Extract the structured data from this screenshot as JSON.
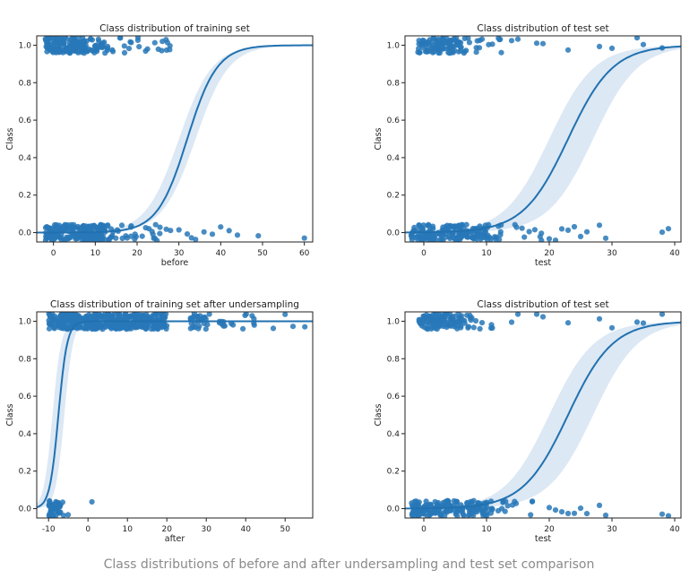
{
  "caption": "Class distributions of before and after undersampling and test set comparison",
  "style": {
    "point_color": "#2878b8",
    "line_color": "#2171b0",
    "band_color": "#dce8f4",
    "axis_color": "#222222"
  },
  "chart_data": [
    {
      "type": "scatter",
      "subtype": "logistic-regression-with-jitter",
      "title": "Class distribution of training set",
      "xlabel": "before",
      "ylabel": "Class",
      "xlim": [
        -4,
        62
      ],
      "ylim": [
        -0.05,
        1.05
      ],
      "xticks": [
        0,
        10,
        20,
        30,
        40,
        50,
        60
      ],
      "yticks": [
        0.0,
        0.2,
        0.4,
        0.6,
        0.8,
        1.0
      ],
      "logistic_fit": {
        "midpoint": 32,
        "slope": 0.28,
        "band_lo_mid": 30,
        "band_hi_mid": 34,
        "band_scale": 0.9
      },
      "class_0_points": {
        "dense_x_range": [
          -2,
          12
        ],
        "sparse_x_range": [
          12,
          27
        ],
        "outliers_x": [
          28,
          30,
          32,
          33,
          34,
          36,
          38,
          40,
          42,
          44,
          49,
          60
        ]
      },
      "class_1_points": {
        "dense_x_range": [
          -2,
          8
        ],
        "sparse_x_range": [
          8,
          28
        ],
        "outliers_x": []
      }
    },
    {
      "type": "scatter",
      "subtype": "logistic-regression-with-jitter",
      "title": "Class distribution of test set",
      "xlabel": "test",
      "ylabel": "Class",
      "xlim": [
        -3,
        41
      ],
      "ylim": [
        -0.05,
        1.05
      ],
      "xticks": [
        0,
        10,
        20,
        30,
        40
      ],
      "yticks": [
        0.0,
        0.2,
        0.4,
        0.6,
        0.8,
        1.0
      ],
      "logistic_fit": {
        "midpoint": 23,
        "slope": 0.28,
        "band_lo_mid": 20,
        "band_hi_mid": 27,
        "band_scale": 1.0
      },
      "class_0_points": {
        "dense_x_range": [
          -2,
          10
        ],
        "sparse_x_range": [
          10,
          19
        ],
        "outliers_x": [
          20,
          21,
          22,
          23,
          24,
          25,
          26,
          28,
          29,
          38,
          39
        ]
      },
      "class_1_points": {
        "dense_x_range": [
          -1,
          6
        ],
        "sparse_x_range": [
          6,
          13
        ],
        "outliers_x": [
          14,
          15,
          18,
          19,
          23,
          28,
          30,
          34,
          35,
          38
        ]
      }
    },
    {
      "type": "scatter",
      "subtype": "logistic-regression-with-jitter",
      "title": "Class distribution of training set after undersampling",
      "xlabel": "after",
      "ylabel": "Class",
      "xlim": [
        -13,
        57
      ],
      "ylim": [
        -0.05,
        1.05
      ],
      "xticks": [
        -10,
        0,
        10,
        20,
        30,
        40,
        50
      ],
      "yticks": [
        0.0,
        0.2,
        0.4,
        0.6,
        0.8,
        1.0
      ],
      "logistic_fit": {
        "midpoint": -7.5,
        "slope": 0.9,
        "band_lo_mid": -9,
        "band_hi_mid": -6,
        "band_scale": 1.0
      },
      "class_0_points": {
        "dense_x_range": [
          -10,
          -7
        ],
        "sparse_x_range": [
          -7,
          -5
        ],
        "outliers_x": [
          1
        ]
      },
      "class_1_points": {
        "dense_x_range": [
          -10,
          20
        ],
        "sparse_x_range": [
          26,
          43
        ],
        "outliers_x": [
          -5,
          47,
          50,
          52,
          55
        ]
      }
    },
    {
      "type": "scatter",
      "subtype": "logistic-regression-with-jitter",
      "title": "Class distribution of test set",
      "xlabel": "test",
      "ylabel": "Class",
      "xlim": [
        -3,
        41
      ],
      "ylim": [
        -0.05,
        1.05
      ],
      "xticks": [
        0,
        10,
        20,
        30,
        40
      ],
      "yticks": [
        0.0,
        0.2,
        0.4,
        0.6,
        0.8,
        1.0
      ],
      "logistic_fit": {
        "midpoint": 23,
        "slope": 0.28,
        "band_lo_mid": 20,
        "band_hi_mid": 27,
        "band_scale": 1.0
      },
      "class_0_points": {
        "dense_x_range": [
          -2,
          10
        ],
        "sparse_x_range": [
          10,
          19
        ],
        "outliers_x": [
          20,
          21,
          22,
          23,
          24,
          25,
          26,
          28,
          29,
          38,
          39
        ]
      },
      "class_1_points": {
        "dense_x_range": [
          -1,
          6
        ],
        "sparse_x_range": [
          6,
          13
        ],
        "outliers_x": [
          14,
          15,
          18,
          19,
          23,
          28,
          30,
          34,
          35,
          38
        ]
      }
    }
  ]
}
